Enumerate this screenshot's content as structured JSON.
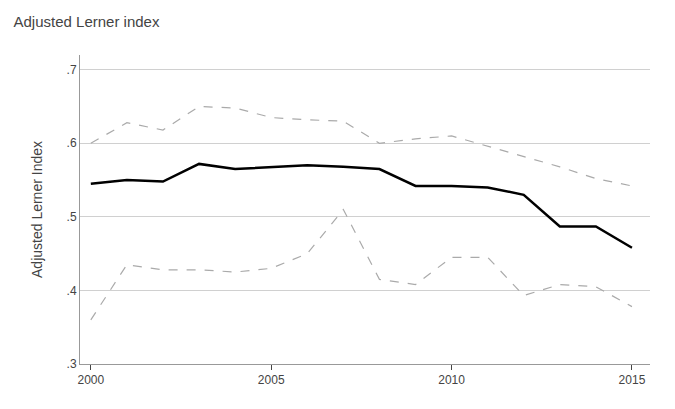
{
  "chart_data": {
    "type": "line",
    "title": "Adjusted Lerner index",
    "ylabel": "Adjusted Lerner Index",
    "x": [
      2000,
      2001,
      2002,
      2003,
      2004,
      2005,
      2006,
      2007,
      2008,
      2009,
      2010,
      2011,
      2012,
      2013,
      2014,
      2015
    ],
    "series": [
      {
        "color": "#aaaaaa",
        "line_style": "dashed",
        "values": [
          0.6,
          0.628,
          0.618,
          0.65,
          0.648,
          0.635,
          0.632,
          0.63,
          0.6,
          0.606,
          0.61,
          0.596,
          0.582,
          0.568,
          0.552,
          0.542
        ]
      },
      {
        "color": "#aaaaaa",
        "line_style": "dashed",
        "values": [
          0.36,
          0.435,
          0.428,
          0.428,
          0.425,
          0.43,
          0.45,
          0.51,
          0.415,
          0.408,
          0.445,
          0.445,
          0.393,
          0.408,
          0.405,
          0.378
        ]
      },
      {
        "color": "#000000",
        "line_style": "solid",
        "values": [
          0.545,
          0.55,
          0.548,
          0.572,
          0.565,
          0.568,
          0.57,
          0.568,
          0.565,
          0.542,
          0.542,
          0.54,
          0.53,
          0.487,
          0.487,
          0.458
        ]
      }
    ],
    "xlim": [
      1999.7,
      2015.5
    ],
    "xticks": [
      2000,
      2005,
      2010,
      2015
    ],
    "ylim": [
      0.3,
      0.72
    ],
    "yticks": [
      {
        "value": 0.3,
        "label": ".3"
      },
      {
        "value": 0.4,
        "label": ".4"
      },
      {
        "value": 0.5,
        "label": ".5"
      },
      {
        "value": 0.6,
        "label": ".6"
      },
      {
        "value": 0.7,
        "label": ".7"
      }
    ],
    "grid": "y"
  }
}
